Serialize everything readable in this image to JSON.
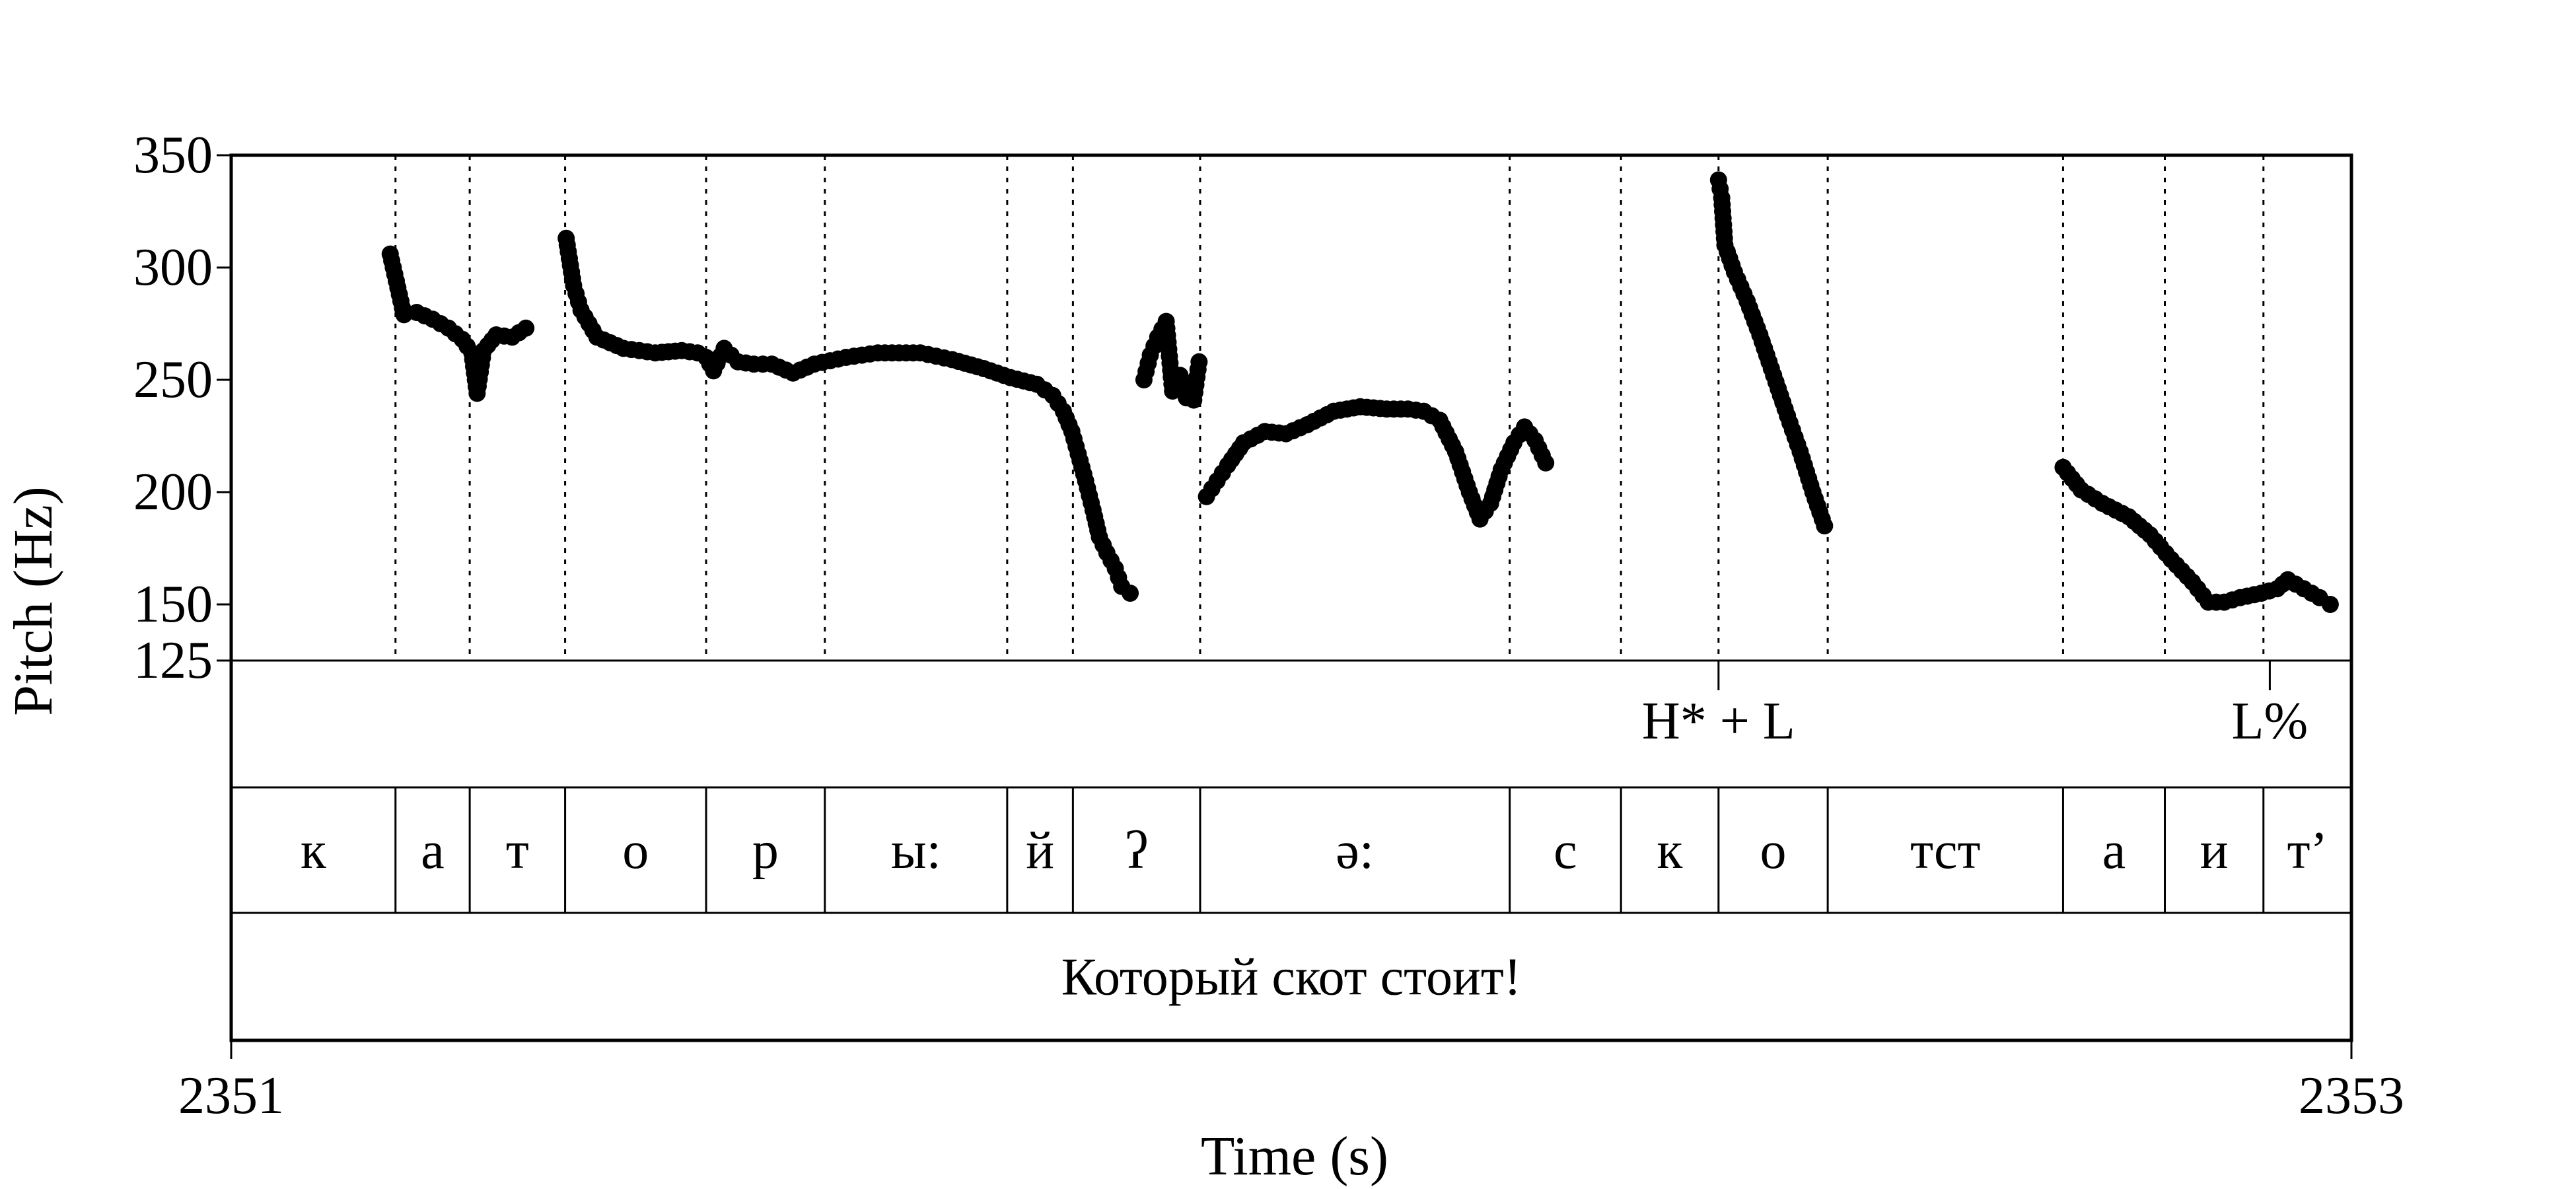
{
  "chart_data": {
    "type": "scatter",
    "xlabel": "Time (s)",
    "ylabel": "Pitch (Hz)",
    "xlim": [
      2351,
      2353
    ],
    "ylim": [
      125,
      350
    ],
    "x_ticks": [
      {
        "value": 2351,
        "label": "2351"
      },
      {
        "value": 2353,
        "label": "2353"
      }
    ],
    "y_ticks": [
      {
        "value": 350,
        "label": "350"
      },
      {
        "value": 300,
        "label": "300"
      },
      {
        "value": 250,
        "label": "250"
      },
      {
        "value": 200,
        "label": "200"
      },
      {
        "value": 150,
        "label": "150"
      },
      {
        "value": 125,
        "label": "125"
      }
    ],
    "grid": false,
    "legend": "none",
    "marker_color": "#000000",
    "tones": [
      {
        "label": "H* + L",
        "time": 2352.403
      },
      {
        "label": "L%",
        "time": 2352.923
      }
    ],
    "segments": [
      {
        "label": "к",
        "start": 2351.0,
        "end": 2351.155
      },
      {
        "label": "а",
        "start": 2351.155,
        "end": 2351.225
      },
      {
        "label": "т",
        "start": 2351.225,
        "end": 2351.315
      },
      {
        "label": "о",
        "start": 2351.315,
        "end": 2351.448
      },
      {
        "label": "р",
        "start": 2351.448,
        "end": 2351.56
      },
      {
        "label": "ы:",
        "start": 2351.56,
        "end": 2351.732
      },
      {
        "label": "й",
        "start": 2351.732,
        "end": 2351.794
      },
      {
        "label": "ʔ",
        "start": 2351.794,
        "end": 2351.914
      },
      {
        "label": "ə:",
        "start": 2351.914,
        "end": 2352.206
      },
      {
        "label": "с",
        "start": 2352.206,
        "end": 2352.311
      },
      {
        "label": "к",
        "start": 2352.311,
        "end": 2352.403
      },
      {
        "label": "о",
        "start": 2352.403,
        "end": 2352.506
      },
      {
        "label": "тст",
        "start": 2352.506,
        "end": 2352.728
      },
      {
        "label": "а",
        "start": 2352.728,
        "end": 2352.824
      },
      {
        "label": "и",
        "start": 2352.824,
        "end": 2352.917
      },
      {
        "label": "т’",
        "start": 2352.917,
        "end": 2353.0
      }
    ],
    "sentence": {
      "label": "Который скот стоит!",
      "start": 2351.0,
      "end": 2353.0
    },
    "pitch_runs": [
      [
        [
          2351.15,
          306
        ],
        [
          2351.163,
          279
        ],
        [
          2351.175,
          280
        ],
        [
          2351.19,
          277
        ],
        [
          2351.205,
          273
        ],
        [
          2351.218,
          268
        ],
        [
          2351.227,
          262
        ],
        [
          2351.232,
          244
        ],
        [
          2351.238,
          263
        ],
        [
          2351.25,
          270
        ],
        [
          2351.265,
          269
        ],
        [
          2351.278,
          273
        ]
      ],
      [
        [
          2351.316,
          313
        ],
        [
          2351.323,
          292
        ],
        [
          2351.33,
          281
        ],
        [
          2351.345,
          269
        ],
        [
          2351.37,
          264
        ],
        [
          2351.4,
          262
        ],
        [
          2351.425,
          263
        ],
        [
          2351.44,
          262
        ],
        [
          2351.448,
          260
        ],
        [
          2351.455,
          254
        ],
        [
          2351.465,
          264
        ],
        [
          2351.478,
          258
        ],
        [
          2351.493,
          257
        ],
        [
          2351.51,
          257
        ],
        [
          2351.53,
          253
        ],
        [
          2351.55,
          257
        ],
        [
          2351.58,
          260
        ],
        [
          2351.61,
          262
        ],
        [
          2351.65,
          262
        ],
        [
          2351.68,
          259
        ],
        [
          2351.71,
          255
        ],
        [
          2351.735,
          251
        ],
        [
          2351.76,
          248
        ],
        [
          2351.775,
          243
        ],
        [
          2351.785,
          236
        ],
        [
          2351.793,
          227
        ],
        [
          2351.799,
          217
        ],
        [
          2351.806,
          205
        ],
        [
          2351.813,
          192
        ],
        [
          2351.819,
          180
        ],
        [
          2351.826,
          173
        ],
        [
          2351.834,
          166
        ],
        [
          2351.84,
          158
        ],
        [
          2351.848,
          155
        ]
      ],
      [
        [
          2351.861,
          250
        ],
        [
          2351.867,
          261
        ],
        [
          2351.874,
          269
        ],
        [
          2351.882,
          276
        ],
        [
          2351.888,
          245
        ],
        [
          2351.895,
          252
        ],
        [
          2351.901,
          242
        ],
        [
          2351.908,
          241
        ],
        [
          2351.913,
          258
        ]
      ],
      [
        [
          2351.92,
          198
        ],
        [
          2351.93,
          205
        ],
        [
          2351.94,
          212
        ],
        [
          2351.955,
          222
        ],
        [
          2351.975,
          227
        ],
        [
          2351.995,
          226
        ],
        [
          2352.015,
          230
        ],
        [
          2352.04,
          236
        ],
        [
          2352.065,
          238
        ],
        [
          2352.09,
          237
        ],
        [
          2352.11,
          237
        ],
        [
          2352.125,
          236
        ],
        [
          2352.14,
          232
        ],
        [
          2352.155,
          218
        ],
        [
          2352.168,
          200
        ],
        [
          2352.178,
          188
        ],
        [
          2352.188,
          195
        ],
        [
          2352.198,
          210
        ],
        [
          2352.21,
          222
        ],
        [
          2352.22,
          229
        ],
        [
          2352.23,
          223
        ],
        [
          2352.24,
          213
        ]
      ],
      [
        [
          2352.403,
          339
        ],
        [
          2352.406,
          331
        ],
        [
          2352.409,
          310
        ],
        [
          2352.418,
          298
        ],
        [
          2352.43,
          285
        ],
        [
          2352.442,
          270
        ],
        [
          2352.455,
          252
        ],
        [
          2352.468,
          234
        ],
        [
          2352.48,
          218
        ],
        [
          2352.492,
          200
        ],
        [
          2352.503,
          185
        ]
      ],
      [
        [
          2352.728,
          211
        ],
        [
          2352.745,
          201
        ],
        [
          2352.765,
          195
        ],
        [
          2352.79,
          189
        ],
        [
          2352.81,
          181
        ],
        [
          2352.83,
          170
        ],
        [
          2352.85,
          160
        ],
        [
          2352.865,
          151
        ],
        [
          2352.88,
          151
        ],
        [
          2352.895,
          153
        ],
        [
          2352.915,
          155
        ],
        [
          2352.93,
          157
        ],
        [
          2352.94,
          161
        ],
        [
          2352.955,
          157
        ],
        [
          2352.97,
          153
        ],
        [
          2352.98,
          150
        ]
      ]
    ]
  }
}
